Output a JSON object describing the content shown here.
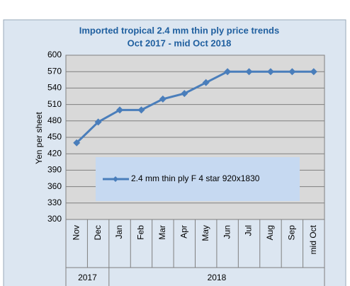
{
  "chart_data": {
    "type": "line",
    "title": [
      "Imported tropical 2.4 mm thin ply price trends",
      "Oct 2017 -  mid  Oct 2018"
    ],
    "y_label": "Yen per sheet",
    "categories": [
      "Nov",
      "Dec",
      "Jan",
      "Feb",
      "Mar",
      "Apr",
      "May",
      "Jun",
      "Jul",
      "Aug",
      "Sep",
      "mid Oct"
    ],
    "years": [
      "2017",
      "2017",
      "2018",
      "2018",
      "2018",
      "2018",
      "2018",
      "2018",
      "2018",
      "2018",
      "2018",
      "2018"
    ],
    "series": [
      {
        "name": "2.4 mm thin ply F 4 star 920x1830",
        "color": "#4a7ebb",
        "values": [
          440,
          478,
          500,
          500,
          520,
          530,
          550,
          570,
          570,
          570,
          570,
          570
        ]
      }
    ],
    "ylim": [
      300,
      600
    ],
    "yticks": [
      300,
      330,
      360,
      390,
      420,
      450,
      480,
      510,
      540,
      570,
      600
    ],
    "grid": true,
    "legend": "center"
  }
}
